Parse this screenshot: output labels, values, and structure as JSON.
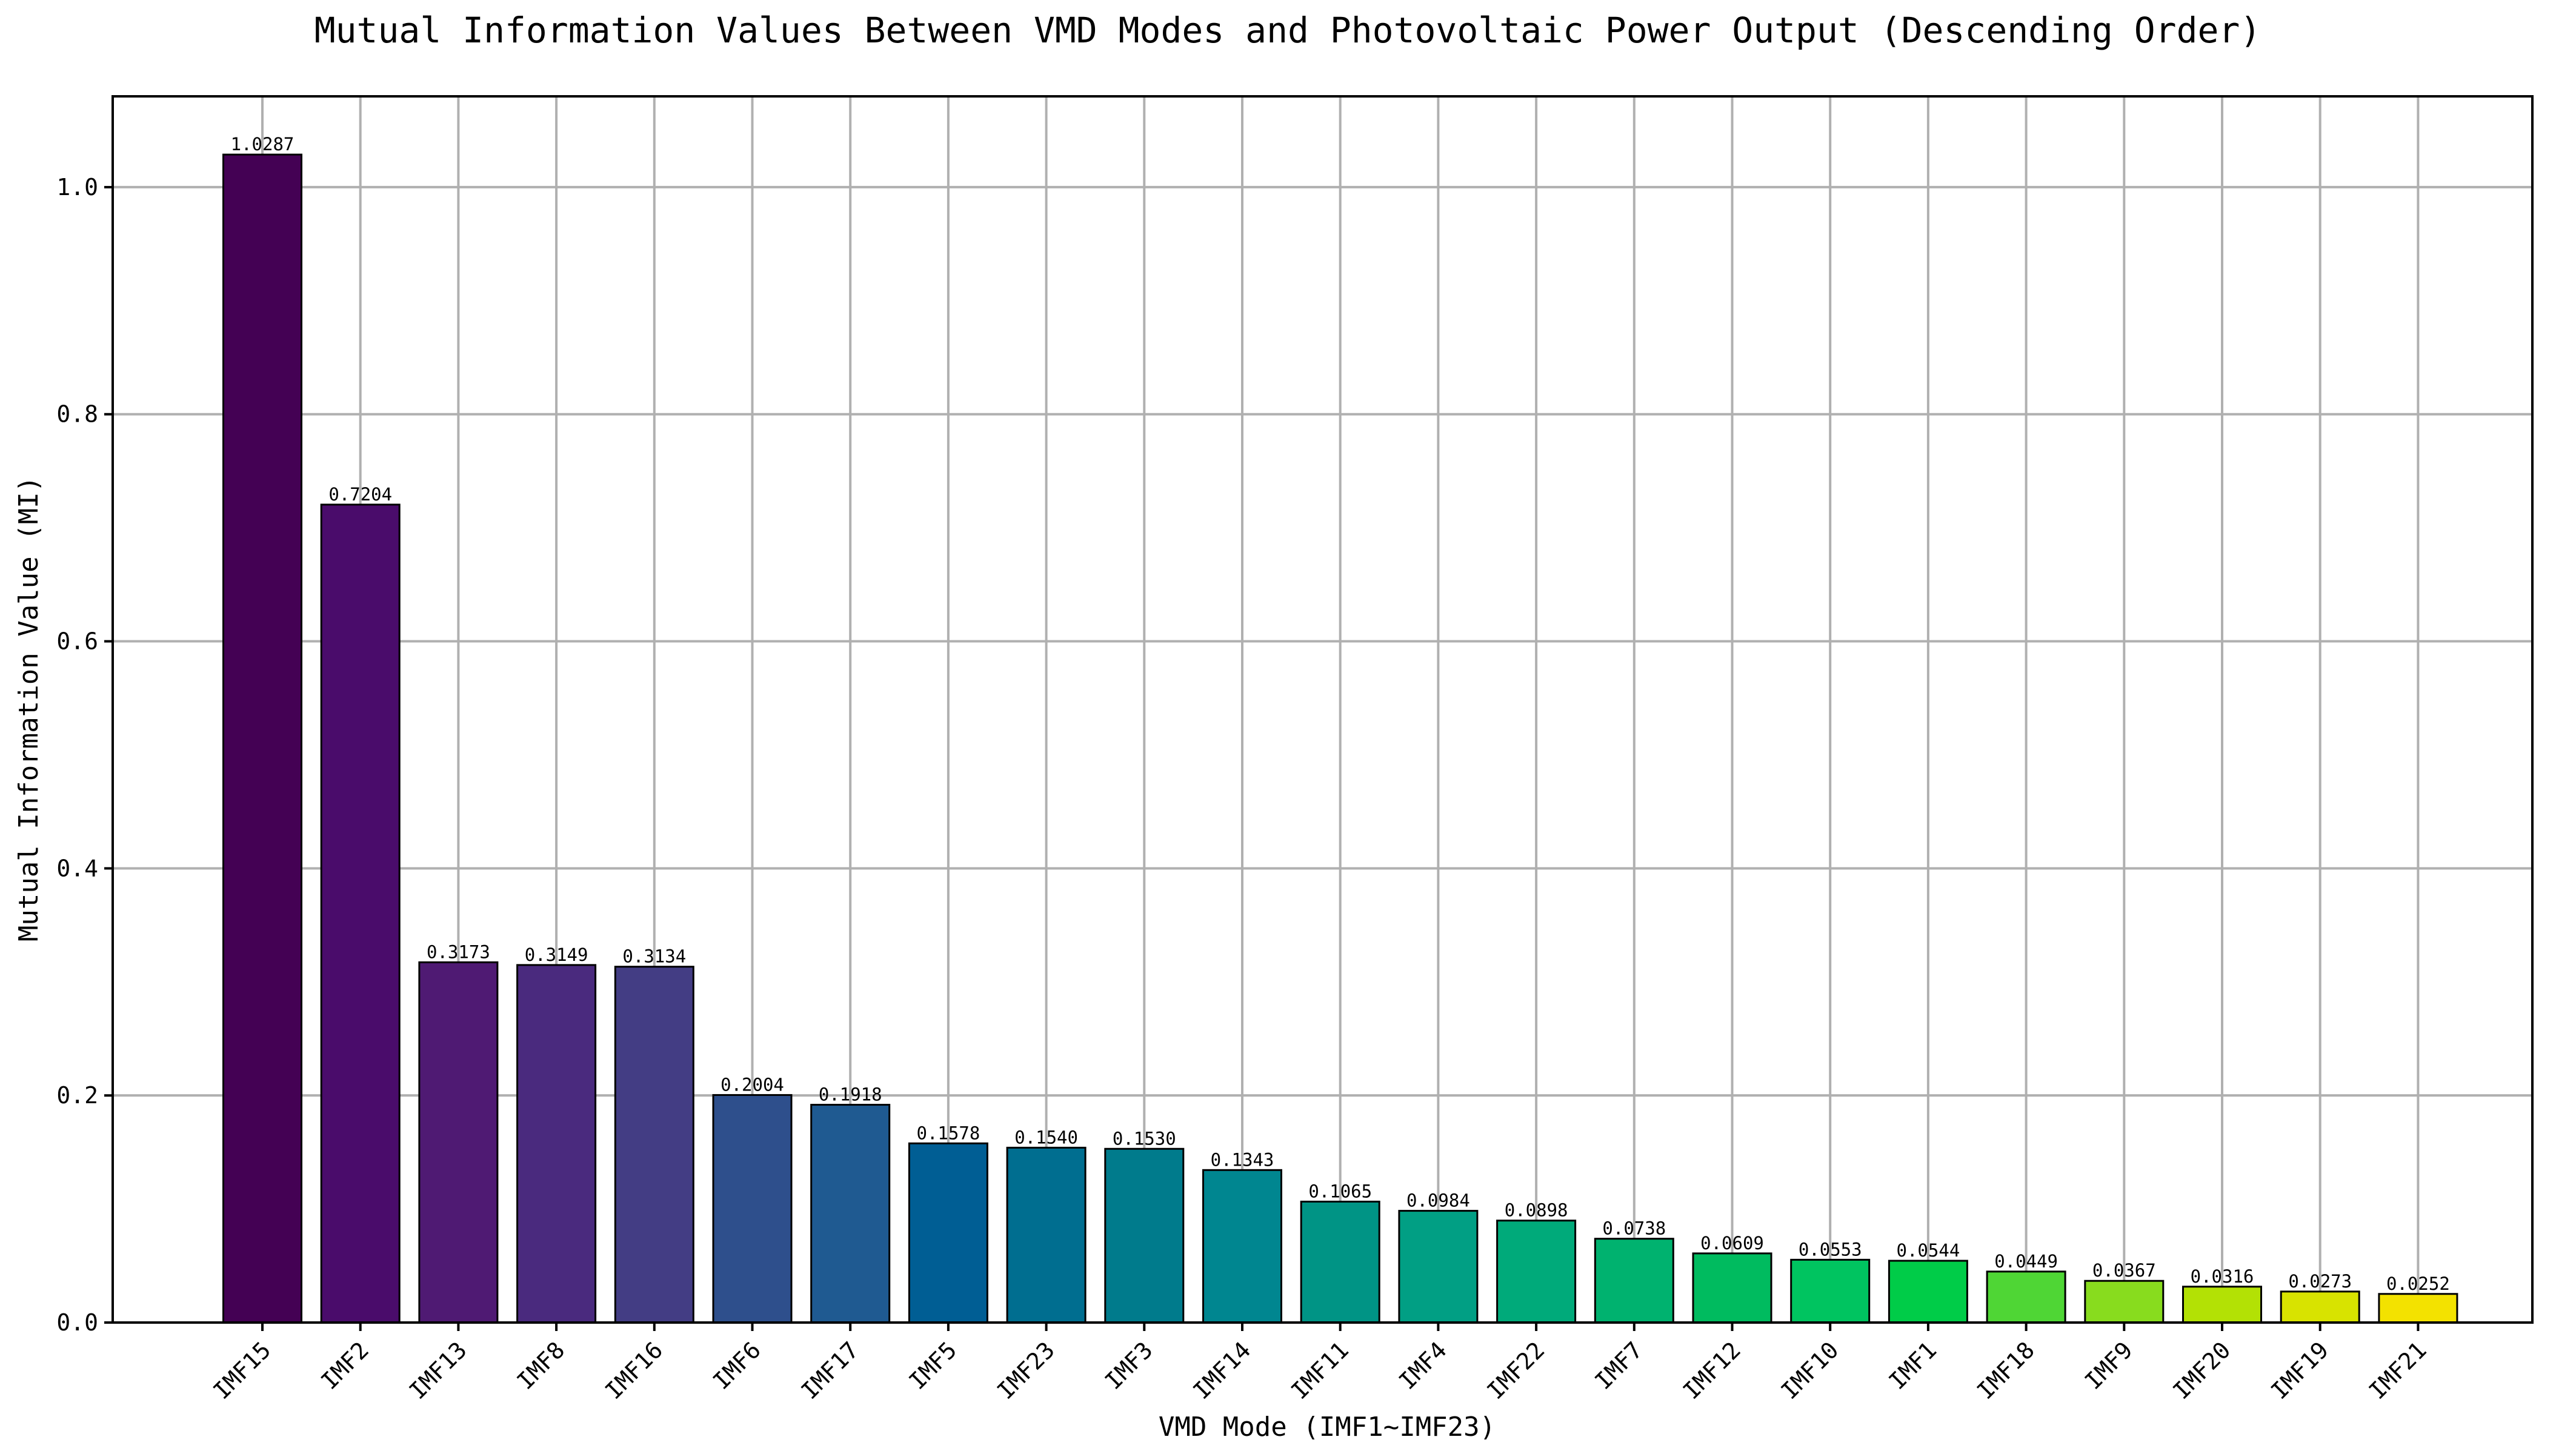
{
  "chart_data": {
    "type": "bar",
    "title": "Mutual Information Values Between VMD Modes and Photovoltaic Power Output (Descending Order)",
    "xlabel": "VMD Mode (IMF1~IMF23)",
    "ylabel": "Mutual Information Value (MI)",
    "ylim": [
      0,
      1.08
    ],
    "yticks": [
      "0.0",
      "0.2",
      "0.4",
      "0.6",
      "0.8",
      "1.0"
    ],
    "grid": true,
    "categories": [
      "IMF15",
      "IMF2",
      "IMF13",
      "IMF8",
      "IMF16",
      "IMF6",
      "IMF17",
      "IMF5",
      "IMF23",
      "IMF3",
      "IMF14",
      "IMF11",
      "IMF4",
      "IMF22",
      "IMF7",
      "IMF12",
      "IMF10",
      "IMF1",
      "IMF18",
      "IMF9",
      "IMF20",
      "IMF19",
      "IMF21"
    ],
    "values": [
      1.0287,
      0.7204,
      0.3173,
      0.3149,
      0.3134,
      0.2004,
      0.1918,
      0.1578,
      0.154,
      0.153,
      0.1343,
      0.1065,
      0.0984,
      0.0898,
      0.0738,
      0.0609,
      0.0553,
      0.0544,
      0.0449,
      0.0367,
      0.0316,
      0.0273,
      0.0252
    ],
    "value_labels": [
      "1.0287",
      "0.7204",
      "0.3173",
      "0.3149",
      "0.3134",
      "0.2004",
      "0.1918",
      "0.1578",
      "0.1540",
      "0.1530",
      "0.1343",
      "0.1065",
      "0.0984",
      "0.0898",
      "0.0738",
      "0.0609",
      "0.0553",
      "0.0544",
      "0.0449",
      "0.0367",
      "0.0316",
      "0.0273",
      "0.0252"
    ],
    "colors": [
      "#440154",
      "#4a0c6b",
      "#4f1a73",
      "#4a2a7e",
      "#433d84",
      "#2e4f8c",
      "#1f5a91",
      "#005e94",
      "#006e90",
      "#007b8c",
      "#008690",
      "#009485",
      "#019f84",
      "#00aa7a",
      "#00b26f",
      "#00bb5f",
      "#00c460",
      "#00cc48",
      "#4fd635",
      "#88dc1e",
      "#b3e105",
      "#d8e300",
      "#f3e200"
    ]
  }
}
